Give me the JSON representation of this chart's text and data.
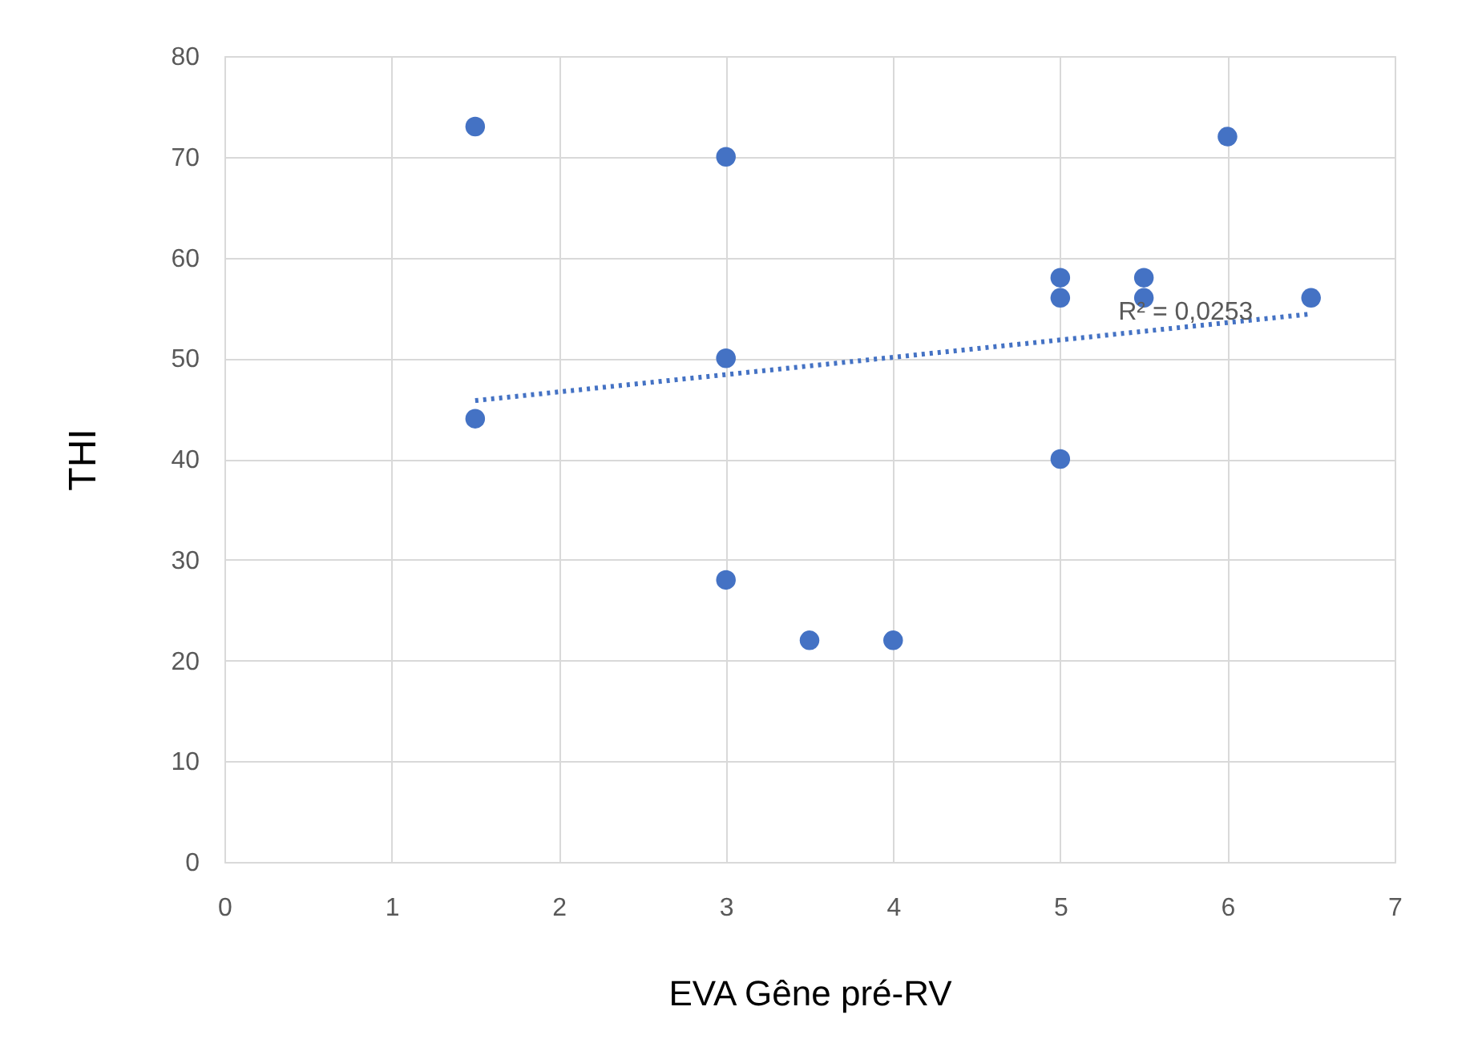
{
  "chart_data": {
    "type": "scatter",
    "xlabel": "EVA Gêne pré-RV",
    "ylabel": "THI",
    "xlim": [
      0,
      7
    ],
    "xticks": [
      0,
      1,
      2,
      3,
      4,
      5,
      6,
      7
    ],
    "ylim": [
      0,
      80
    ],
    "yticks": [
      0,
      10,
      20,
      30,
      40,
      50,
      60,
      70,
      80
    ],
    "grid": true,
    "series": [
      {
        "marker": "circle",
        "color": "#4472c4",
        "x": [
          1.5,
          1.5,
          3,
          3,
          3,
          3.5,
          4,
          5,
          5,
          5,
          5.5,
          5.5,
          6,
          6.5
        ],
        "values": [
          73,
          44,
          70,
          50,
          28,
          22,
          22,
          58,
          56,
          40,
          58,
          56,
          72,
          56
        ]
      },
      {
        "type": "line",
        "marker": "none",
        "line_style": "dotted",
        "color": "#4472c4",
        "x": [
          1.5,
          6.5
        ],
        "values": [
          45.8,
          54.4
        ]
      }
    ],
    "annotations": [
      {
        "text": "R² = 0,0253",
        "x": 5.75,
        "y": 54
      }
    ]
  }
}
